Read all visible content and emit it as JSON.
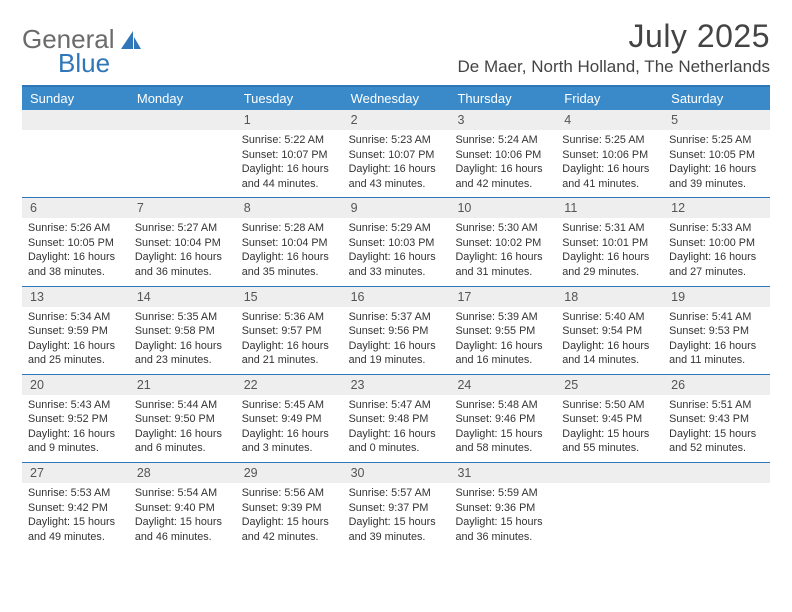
{
  "brand": {
    "part1": "General",
    "part2": "Blue"
  },
  "title": "July 2025",
  "location": "De Maer, North Holland, The Netherlands",
  "colors": {
    "header_bg": "#3a8ac9",
    "border": "#2f77b8",
    "daynum_bg": "#eeeeee",
    "text": "#333333",
    "logo_gray": "#6b6b6b"
  },
  "dow": [
    "Sunday",
    "Monday",
    "Tuesday",
    "Wednesday",
    "Thursday",
    "Friday",
    "Saturday"
  ],
  "weeks": [
    [
      null,
      null,
      {
        "n": "1",
        "sr": "5:22 AM",
        "ss": "10:07 PM",
        "dl": "16 hours and 44 minutes."
      },
      {
        "n": "2",
        "sr": "5:23 AM",
        "ss": "10:07 PM",
        "dl": "16 hours and 43 minutes."
      },
      {
        "n": "3",
        "sr": "5:24 AM",
        "ss": "10:06 PM",
        "dl": "16 hours and 42 minutes."
      },
      {
        "n": "4",
        "sr": "5:25 AM",
        "ss": "10:06 PM",
        "dl": "16 hours and 41 minutes."
      },
      {
        "n": "5",
        "sr": "5:25 AM",
        "ss": "10:05 PM",
        "dl": "16 hours and 39 minutes."
      }
    ],
    [
      {
        "n": "6",
        "sr": "5:26 AM",
        "ss": "10:05 PM",
        "dl": "16 hours and 38 minutes."
      },
      {
        "n": "7",
        "sr": "5:27 AM",
        "ss": "10:04 PM",
        "dl": "16 hours and 36 minutes."
      },
      {
        "n": "8",
        "sr": "5:28 AM",
        "ss": "10:04 PM",
        "dl": "16 hours and 35 minutes."
      },
      {
        "n": "9",
        "sr": "5:29 AM",
        "ss": "10:03 PM",
        "dl": "16 hours and 33 minutes."
      },
      {
        "n": "10",
        "sr": "5:30 AM",
        "ss": "10:02 PM",
        "dl": "16 hours and 31 minutes."
      },
      {
        "n": "11",
        "sr": "5:31 AM",
        "ss": "10:01 PM",
        "dl": "16 hours and 29 minutes."
      },
      {
        "n": "12",
        "sr": "5:33 AM",
        "ss": "10:00 PM",
        "dl": "16 hours and 27 minutes."
      }
    ],
    [
      {
        "n": "13",
        "sr": "5:34 AM",
        "ss": "9:59 PM",
        "dl": "16 hours and 25 minutes."
      },
      {
        "n": "14",
        "sr": "5:35 AM",
        "ss": "9:58 PM",
        "dl": "16 hours and 23 minutes."
      },
      {
        "n": "15",
        "sr": "5:36 AM",
        "ss": "9:57 PM",
        "dl": "16 hours and 21 minutes."
      },
      {
        "n": "16",
        "sr": "5:37 AM",
        "ss": "9:56 PM",
        "dl": "16 hours and 19 minutes."
      },
      {
        "n": "17",
        "sr": "5:39 AM",
        "ss": "9:55 PM",
        "dl": "16 hours and 16 minutes."
      },
      {
        "n": "18",
        "sr": "5:40 AM",
        "ss": "9:54 PM",
        "dl": "16 hours and 14 minutes."
      },
      {
        "n": "19",
        "sr": "5:41 AM",
        "ss": "9:53 PM",
        "dl": "16 hours and 11 minutes."
      }
    ],
    [
      {
        "n": "20",
        "sr": "5:43 AM",
        "ss": "9:52 PM",
        "dl": "16 hours and 9 minutes."
      },
      {
        "n": "21",
        "sr": "5:44 AM",
        "ss": "9:50 PM",
        "dl": "16 hours and 6 minutes."
      },
      {
        "n": "22",
        "sr": "5:45 AM",
        "ss": "9:49 PM",
        "dl": "16 hours and 3 minutes."
      },
      {
        "n": "23",
        "sr": "5:47 AM",
        "ss": "9:48 PM",
        "dl": "16 hours and 0 minutes."
      },
      {
        "n": "24",
        "sr": "5:48 AM",
        "ss": "9:46 PM",
        "dl": "15 hours and 58 minutes."
      },
      {
        "n": "25",
        "sr": "5:50 AM",
        "ss": "9:45 PM",
        "dl": "15 hours and 55 minutes."
      },
      {
        "n": "26",
        "sr": "5:51 AM",
        "ss": "9:43 PM",
        "dl": "15 hours and 52 minutes."
      }
    ],
    [
      {
        "n": "27",
        "sr": "5:53 AM",
        "ss": "9:42 PM",
        "dl": "15 hours and 49 minutes."
      },
      {
        "n": "28",
        "sr": "5:54 AM",
        "ss": "9:40 PM",
        "dl": "15 hours and 46 minutes."
      },
      {
        "n": "29",
        "sr": "5:56 AM",
        "ss": "9:39 PM",
        "dl": "15 hours and 42 minutes."
      },
      {
        "n": "30",
        "sr": "5:57 AM",
        "ss": "9:37 PM",
        "dl": "15 hours and 39 minutes."
      },
      {
        "n": "31",
        "sr": "5:59 AM",
        "ss": "9:36 PM",
        "dl": "15 hours and 36 minutes."
      },
      null,
      null
    ]
  ],
  "labels": {
    "sunrise": "Sunrise:",
    "sunset": "Sunset:",
    "daylight": "Daylight:"
  }
}
